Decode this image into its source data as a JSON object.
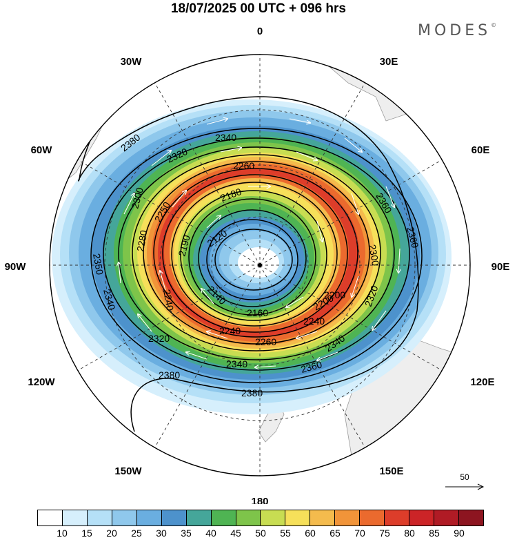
{
  "title": "18/07/2025  00 UTC  + 096 hrs",
  "brand": "MODES",
  "brand_mark": "©",
  "longitude_labels": {
    "top": "0",
    "tr": "30E",
    "r60": "60E",
    "right": "90E",
    "r120": "120E",
    "br": "150E",
    "bottom": "180",
    "bl": "150W",
    "l120": "120W",
    "left": "90W",
    "l60": "60W",
    "tl": "30W"
  },
  "height_contours": {
    "units": "geopotential height",
    "labels": [
      "2380",
      "2380",
      "2380",
      "2360",
      "2360",
      "2360",
      "2340",
      "2340",
      "2340",
      "2340",
      "2320",
      "2320",
      "2320",
      "2300",
      "2300",
      "2280",
      "2260",
      "2260",
      "2240",
      "2240",
      "2240",
      "2200",
      "2200",
      "2190",
      "2180",
      "2160",
      "2140",
      "2120",
      "2350",
      "2250"
    ]
  },
  "reference_vector": {
    "label": "50",
    "arrow": "right-arrow"
  },
  "colorbar": {
    "labels": [
      "10",
      "15",
      "20",
      "25",
      "30",
      "35",
      "40",
      "45",
      "50",
      "55",
      "60",
      "65",
      "70",
      "75",
      "80",
      "85",
      "90"
    ],
    "colors": [
      "#ffffff",
      "#d6effc",
      "#b5e0f7",
      "#8fc8ec",
      "#6aaee0",
      "#4d92cc",
      "#45a69a",
      "#4fb453",
      "#7ec44a",
      "#c8dd52",
      "#f6e05a",
      "#f4bb4d",
      "#f19439",
      "#eb6a2e",
      "#dd3d2a",
      "#cc2427",
      "#b01b25",
      "#8d1520"
    ]
  }
}
